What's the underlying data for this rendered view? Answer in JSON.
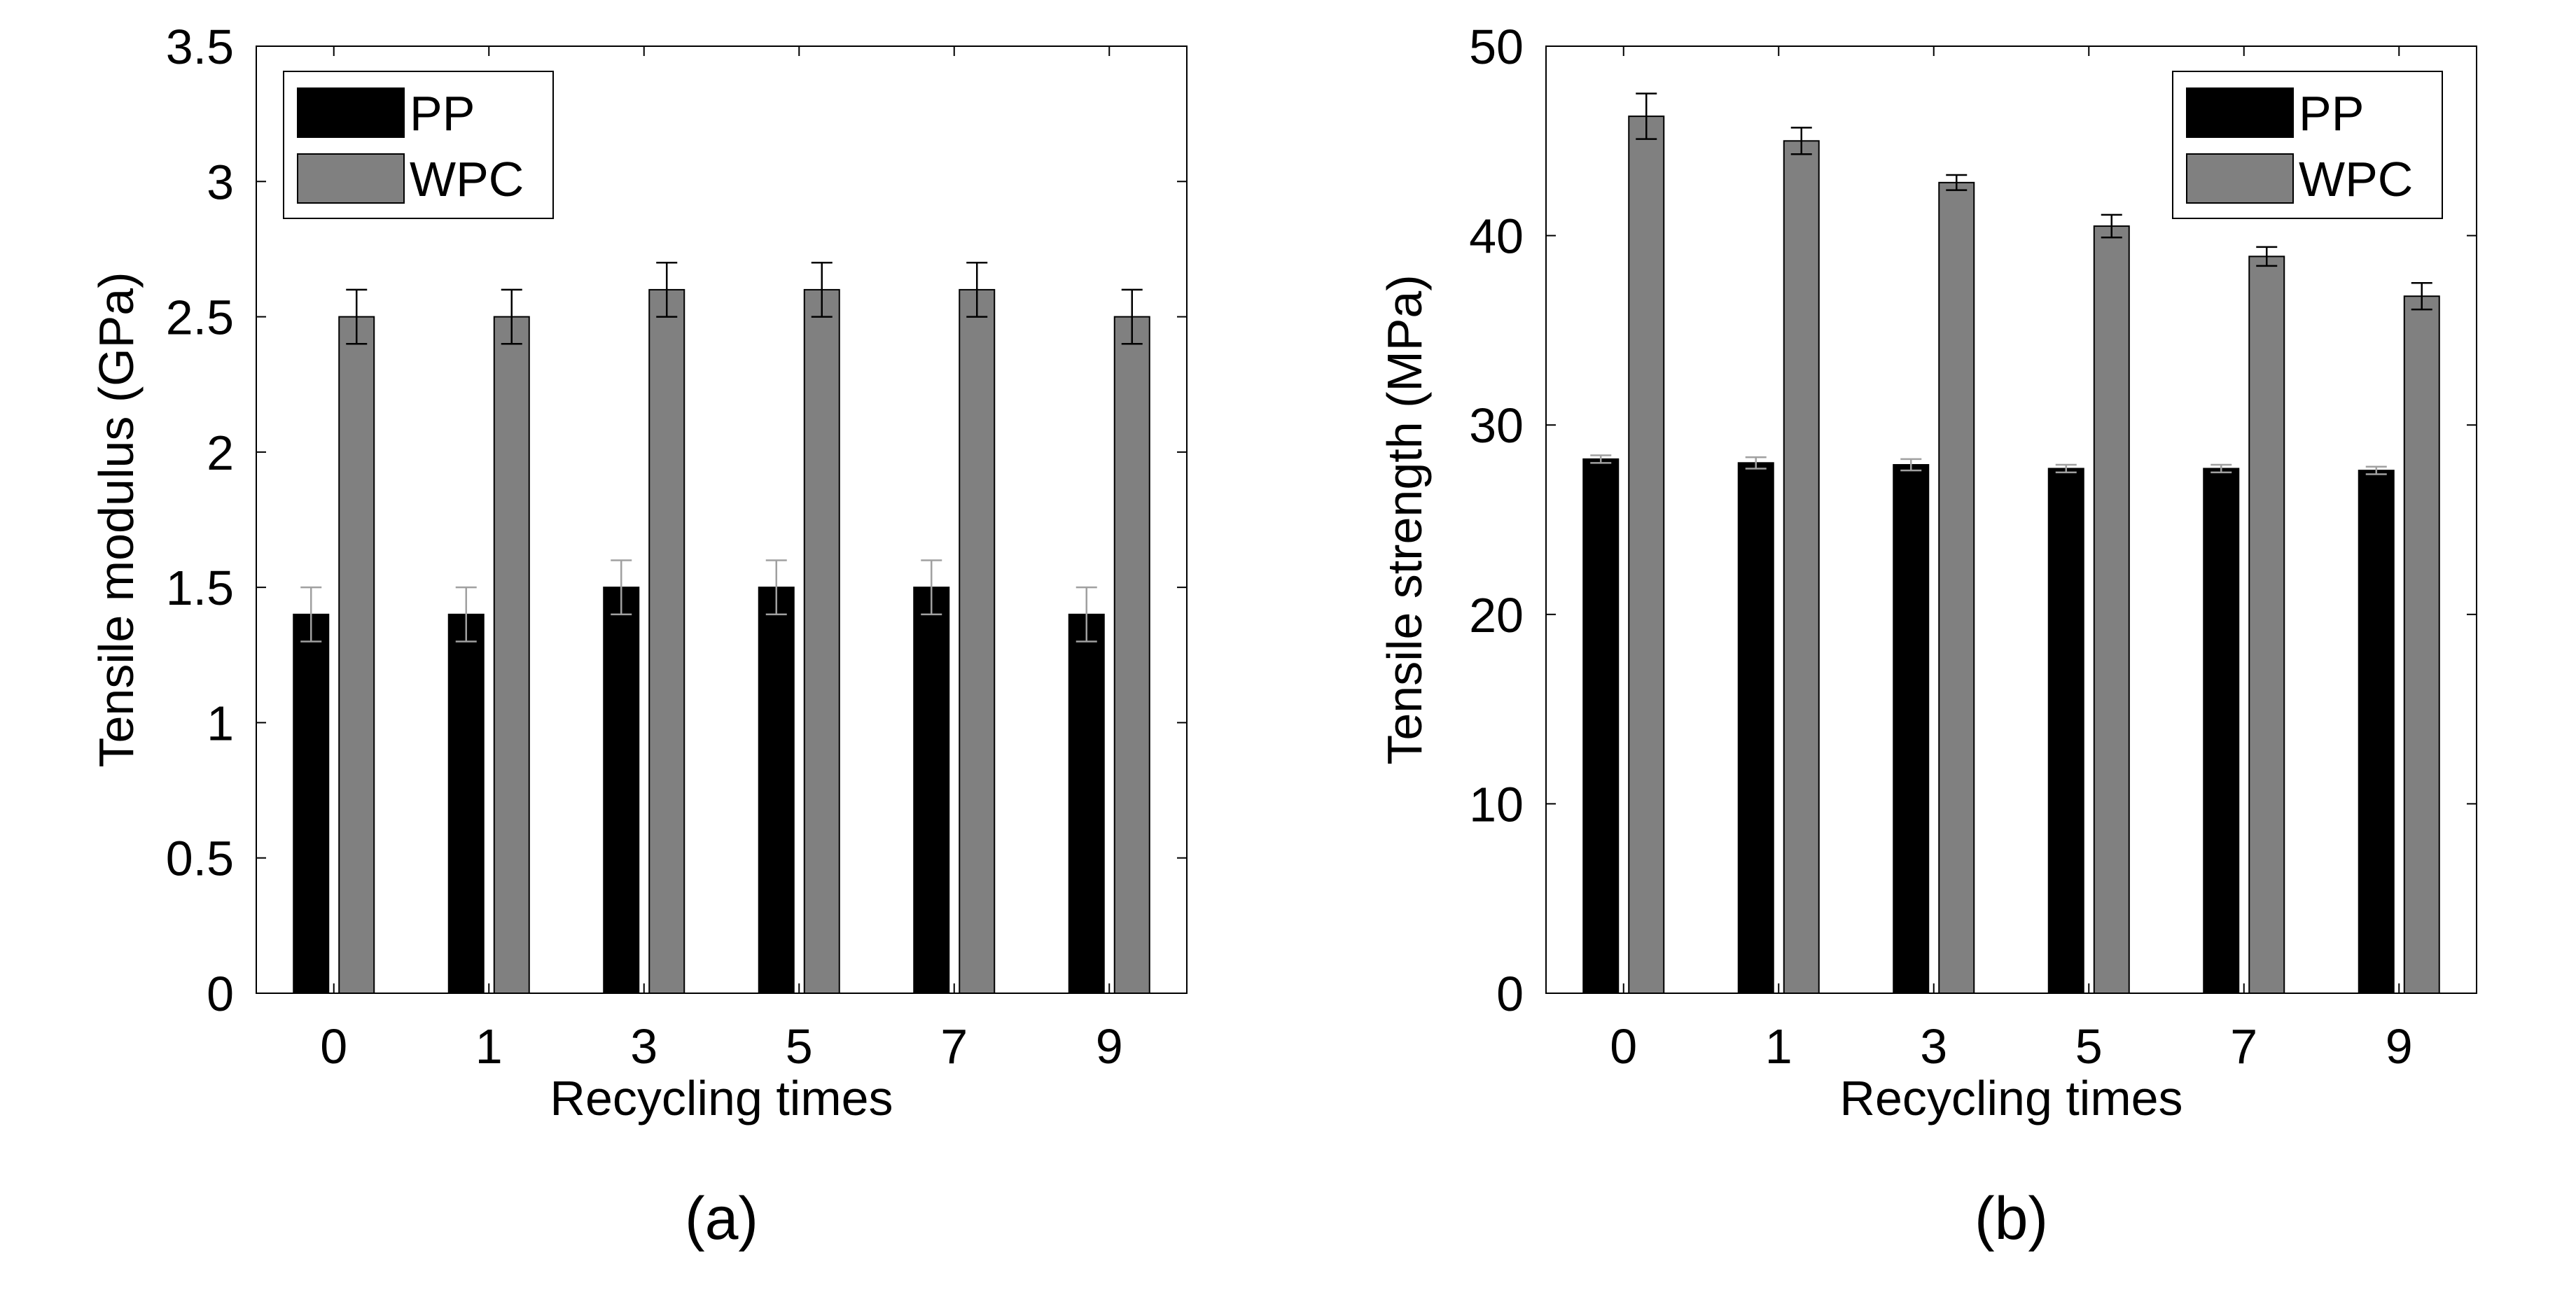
{
  "chart_data": [
    {
      "type": "bar",
      "panel_label": "(a)",
      "categories": [
        "0",
        "1",
        "3",
        "5",
        "7",
        "9"
      ],
      "series": [
        {
          "name": "PP",
          "color": "#000000",
          "values": [
            1.4,
            1.4,
            1.5,
            1.5,
            1.5,
            1.4
          ],
          "errors": [
            0.1,
            0.1,
            0.1,
            0.1,
            0.1,
            0.1
          ],
          "error_color": "#a0a0a0"
        },
        {
          "name": "WPC",
          "color": "#808080",
          "values": [
            2.5,
            2.5,
            2.6,
            2.6,
            2.6,
            2.5
          ],
          "errors": [
            0.1,
            0.1,
            0.1,
            0.1,
            0.1,
            0.1
          ],
          "error_color": "#000000"
        }
      ],
      "xlabel": "Recycling times",
      "ylabel": "Tensile modulus (GPa)",
      "ylim": [
        0,
        3.5
      ],
      "yticks": [
        0,
        0.5,
        1,
        1.5,
        2,
        2.5,
        3,
        3.5
      ],
      "ytick_labels": [
        "0",
        "0.5",
        "1",
        "1.5",
        "2",
        "2.5",
        "3",
        "3.5"
      ],
      "legend_position": "top-left"
    },
    {
      "type": "bar",
      "panel_label": "(b)",
      "categories": [
        "0",
        "1",
        "3",
        "5",
        "7",
        "9"
      ],
      "series": [
        {
          "name": "PP",
          "color": "#000000",
          "values": [
            28.2,
            28.0,
            27.9,
            27.7,
            27.7,
            27.6
          ],
          "errors": [
            0.2,
            0.3,
            0.3,
            0.2,
            0.2,
            0.2
          ],
          "error_color": "#a0a0a0"
        },
        {
          "name": "WPC",
          "color": "#808080",
          "values": [
            46.3,
            45.0,
            42.8,
            40.5,
            38.9,
            36.8
          ],
          "errors": [
            1.2,
            0.7,
            0.4,
            0.6,
            0.5,
            0.7
          ],
          "error_color": "#000000"
        }
      ],
      "xlabel": "Recycling times",
      "ylabel": "Tensile strength (MPa)",
      "ylim": [
        0,
        50
      ],
      "yticks": [
        0,
        10,
        20,
        30,
        40,
        50
      ],
      "ytick_labels": [
        "0",
        "10",
        "20",
        "30",
        "40",
        "50"
      ],
      "legend_position": "top-right"
    }
  ]
}
